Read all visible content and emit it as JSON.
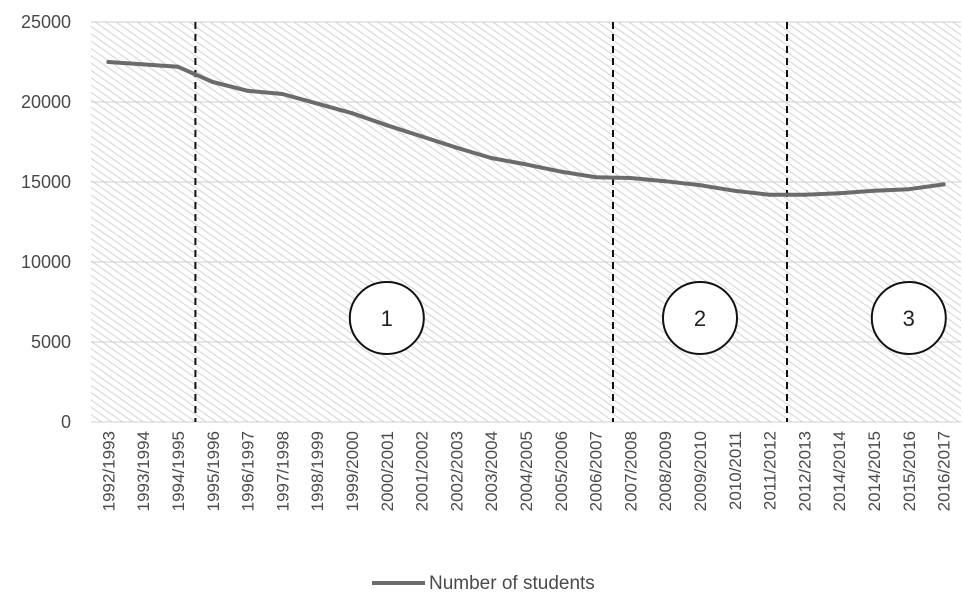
{
  "chart_data": {
    "type": "line",
    "title": "",
    "xlabel": "",
    "ylabel": "",
    "ylim": [
      0,
      25000
    ],
    "y_ticks": [
      "0",
      "5000",
      "10000",
      "15000",
      "20000",
      "25000"
    ],
    "grid": "horizontal",
    "legend_position": "bottom",
    "categories": [
      "1992/1993",
      "1993/1994",
      "1994/1995",
      "1995/1996",
      "1996/1997",
      "1997/1998",
      "1998/1999",
      "1999/2000",
      "2000/2001",
      "2001/2002",
      "2002/2003",
      "2003/2004",
      "2004/2005",
      "2005/2006",
      "2006/2007",
      "2007/2008",
      "2008/2009",
      "2009/2010",
      "2010/2011",
      "2011/2012",
      "2012/2013",
      "2014/2014",
      "2014/2015",
      "2015/2016",
      "2016/2017"
    ],
    "series": [
      {
        "name": "Number of students",
        "color": "#6b6b6b",
        "values": [
          22500,
          22350,
          22200,
          21250,
          20700,
          20500,
          19900,
          19300,
          18550,
          17850,
          17150,
          16500,
          16100,
          15650,
          15300,
          15250,
          15050,
          14800,
          14450,
          14200,
          14200,
          14300,
          14450,
          14550,
          14850
        ]
      }
    ],
    "dividers": [
      {
        "after_category": "1994/1995"
      },
      {
        "after_category": "2006/2007"
      },
      {
        "after_category": "2011/2012"
      }
    ],
    "region_labels": [
      {
        "text": "1",
        "x_category": "2000/2001",
        "y_value": 6500
      },
      {
        "text": "2",
        "x_category": "2009/2010",
        "y_value": 6500
      },
      {
        "text": "3",
        "x_category": "2015/2016",
        "y_value": 6500
      }
    ]
  },
  "colors": {
    "hatch_line": "#d6d6d6",
    "gridline": "#cfcfcf",
    "divider": "#111111",
    "series": "#6b6b6b"
  }
}
